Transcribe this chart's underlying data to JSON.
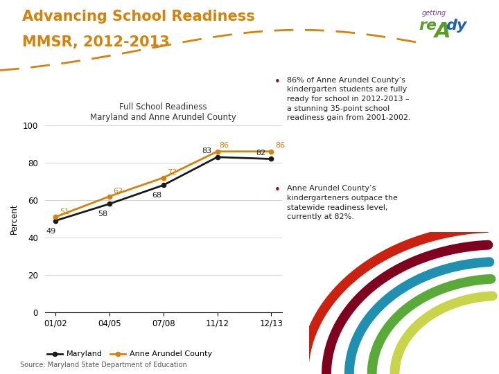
{
  "title_line1": "Advancing School Readiness",
  "title_line2": "MMSR, 2012-2013",
  "title_color": "#d4820a",
  "chart_title_line1": "Full School Readiness",
  "chart_title_line2": "Maryland and Anne Arundel County",
  "x_labels": [
    "01/02",
    "04/05",
    "07/08",
    "11/12",
    "12/13"
  ],
  "maryland_values": [
    49,
    58,
    68,
    83,
    82
  ],
  "county_values": [
    51,
    62,
    72,
    86,
    86
  ],
  "maryland_color": "#1a1a1a",
  "county_color": "#d4820a",
  "ylabel": "Percent",
  "ylim": [
    0,
    100
  ],
  "yticks": [
    0,
    20,
    40,
    60,
    80,
    100
  ],
  "legend_maryland": "Maryland",
  "legend_county": "Anne Arundel County",
  "source_text": "Source: Maryland State Department of Education",
  "b1_line1": "86% of Anne Arundel County’s",
  "b1_line2": "kindergarten students are fully",
  "b1_line3": "ready for school in 2012-2013 –",
  "b1_line4": "a stunning 35-point school",
  "b1_line5": "readiness gain from 2001-2002.",
  "b2_line1": "Anne Arundel County’s",
  "b2_line2": "kindergarteners outpace the",
  "b2_line3": "statewide readiness level,",
  "b2_line4": "currently at 82%.",
  "bullet_color": "#7b1a1a",
  "dashed_line_color": "#d4820a",
  "background_color": "#ffffff",
  "getting_ready_color_getting": "#6a3d8f",
  "getting_ready_color_re": "#4a7c2f",
  "getting_ready_color_A": "#4a7c2f",
  "getting_ready_color_dy": "#2060a0"
}
